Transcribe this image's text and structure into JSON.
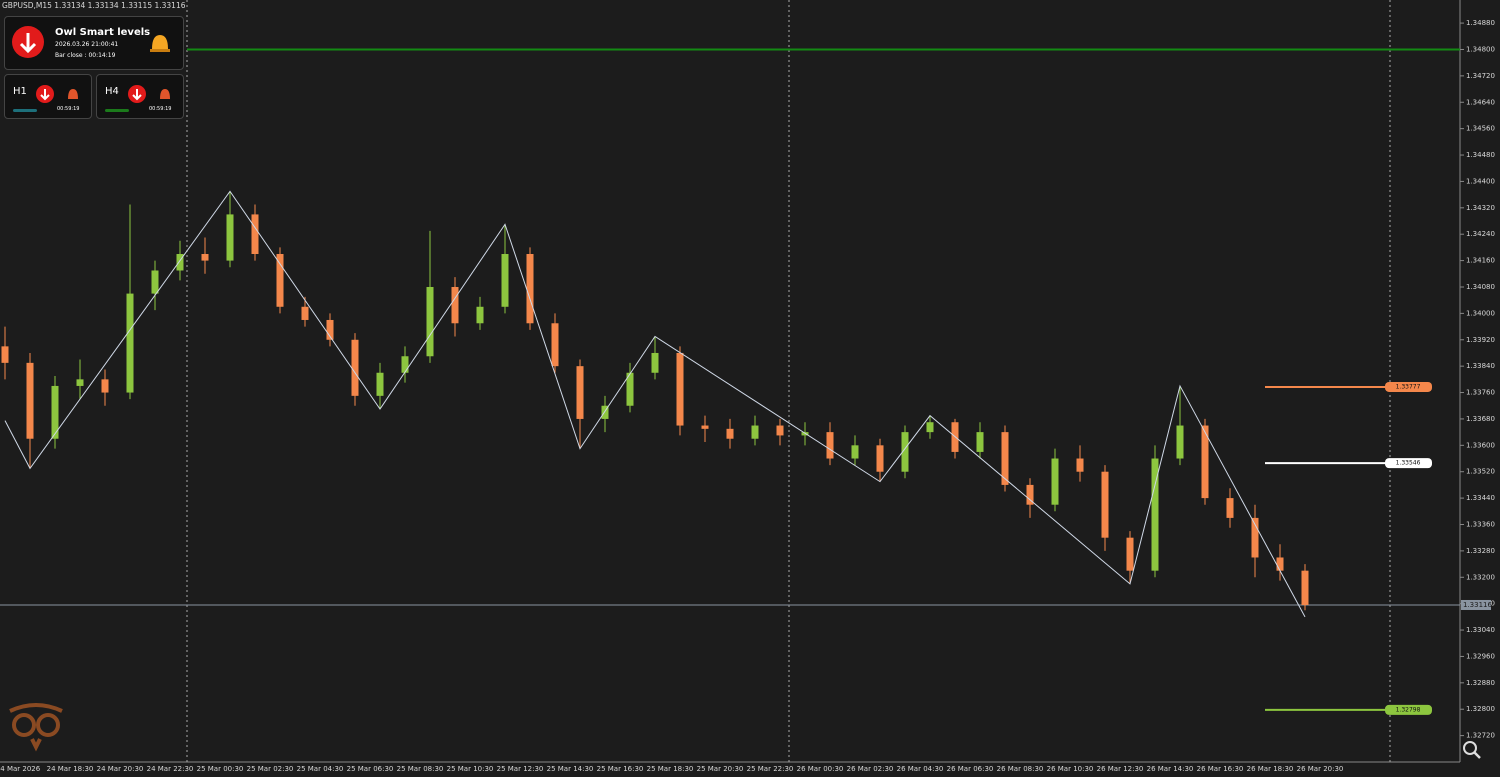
{
  "header": {
    "symbol_info": "GBPUSD,M15  1.33134 1.33134 1.33115 1.33116"
  },
  "panel": {
    "title": "Owl Smart levels",
    "time": "2026.03.26 21:00:41",
    "bar_close": "Bar close : 00:14:19",
    "timeframes": [
      {
        "label": "H1",
        "timer": "00:59:19"
      },
      {
        "label": "H4",
        "timer": "00:59:19"
      }
    ]
  },
  "chart_data": {
    "type": "candlestick",
    "open": [
      1.339,
      1.3385,
      1.3362,
      1.3378,
      1.338,
      1.3376,
      1.3406,
      1.3413,
      1.3418,
      1.3416,
      1.343,
      1.3418,
      1.3402,
      1.3398,
      1.3392,
      1.3375,
      1.3382,
      1.3387,
      1.3408,
      1.3397,
      1.3402,
      1.3418,
      1.3397,
      1.3384,
      1.3368,
      1.3372,
      1.3382,
      1.3388,
      1.3366,
      1.3365,
      1.3362,
      1.3366,
      1.3363,
      1.3364,
      1.3356,
      1.336,
      1.3352,
      1.3364,
      1.3367,
      1.3358,
      1.3364,
      1.3348,
      1.3342,
      1.3356,
      1.3352,
      1.3332,
      1.3322,
      1.3356,
      1.3366,
      1.3344,
      1.3338,
      1.3326,
      1.3322
    ],
    "high": [
      1.3396,
      1.3388,
      1.3381,
      1.3386,
      1.3383,
      1.3433,
      1.3416,
      1.3422,
      1.3423,
      1.3437,
      1.3433,
      1.342,
      1.3405,
      1.34,
      1.3394,
      1.3385,
      1.339,
      1.3425,
      1.3411,
      1.3405,
      1.3427,
      1.342,
      1.34,
      1.3386,
      1.3375,
      1.3385,
      1.3393,
      1.339,
      1.3369,
      1.3368,
      1.3369,
      1.3368,
      1.3367,
      1.3367,
      1.3363,
      1.3362,
      1.3366,
      1.3369,
      1.3368,
      1.3367,
      1.3366,
      1.335,
      1.3359,
      1.336,
      1.3354,
      1.3334,
      1.336,
      1.3378,
      1.3368,
      1.3347,
      1.3342,
      1.333,
      1.3324
    ],
    "low": [
      1.338,
      1.3353,
      1.3359,
      1.3374,
      1.3372,
      1.3374,
      1.3401,
      1.341,
      1.3412,
      1.3414,
      1.3416,
      1.34,
      1.3396,
      1.339,
      1.3372,
      1.3371,
      1.3379,
      1.3385,
      1.3393,
      1.3395,
      1.34,
      1.3395,
      1.3382,
      1.3359,
      1.3364,
      1.337,
      1.338,
      1.3363,
      1.3361,
      1.3359,
      1.336,
      1.336,
      1.336,
      1.3354,
      1.3354,
      1.3349,
      1.335,
      1.3362,
      1.3356,
      1.3356,
      1.3346,
      1.3338,
      1.334,
      1.3349,
      1.3328,
      1.3318,
      1.332,
      1.3354,
      1.3342,
      1.3335,
      1.332,
      1.3319,
      1.331
    ],
    "close": [
      1.3385,
      1.3362,
      1.3378,
      1.338,
      1.3376,
      1.3406,
      1.3413,
      1.3418,
      1.3416,
      1.343,
      1.3418,
      1.3402,
      1.3398,
      1.3392,
      1.3375,
      1.3382,
      1.3387,
      1.3408,
      1.3397,
      1.3402,
      1.3418,
      1.3397,
      1.3384,
      1.3368,
      1.3372,
      1.3382,
      1.3388,
      1.3366,
      1.3365,
      1.3362,
      1.3366,
      1.3363,
      1.3364,
      1.3356,
      1.336,
      1.3352,
      1.3364,
      1.3367,
      1.3358,
      1.3364,
      1.3348,
      1.3342,
      1.3356,
      1.3352,
      1.3332,
      1.3322,
      1.3356,
      1.3366,
      1.3344,
      1.3338,
      1.3326,
      1.3322,
      1.33116
    ],
    "colors": {
      "up": "#8dc63f",
      "down": "#f4874b"
    },
    "ylim": [
      1.3264,
      1.3495
    ],
    "yticks": [
      {
        "value": 1.3488,
        "label": "1.34880"
      },
      {
        "value": 1.348,
        "label": "1.34800"
      },
      {
        "value": 1.3472,
        "label": "1.34720"
      },
      {
        "value": 1.3464,
        "label": "1.34640"
      },
      {
        "value": 1.3456,
        "label": "1.34560"
      },
      {
        "value": 1.3448,
        "label": "1.34480"
      },
      {
        "value": 1.344,
        "label": "1.34400"
      },
      {
        "value": 1.3432,
        "label": "1.34320"
      },
      {
        "value": 1.3424,
        "label": "1.34240"
      },
      {
        "value": 1.3416,
        "label": "1.34160"
      },
      {
        "value": 1.3408,
        "label": "1.34080"
      },
      {
        "value": 1.34,
        "label": "1.34000"
      },
      {
        "value": 1.3392,
        "label": "1.33920"
      },
      {
        "value": 1.3384,
        "label": "1.33840"
      },
      {
        "value": 1.3376,
        "label": "1.33760"
      },
      {
        "value": 1.3368,
        "label": "1.33680"
      },
      {
        "value": 1.336,
        "label": "1.33600"
      },
      {
        "value": 1.3352,
        "label": "1.33520"
      },
      {
        "value": 1.3344,
        "label": "1.33440"
      },
      {
        "value": 1.3336,
        "label": "1.33360"
      },
      {
        "value": 1.3328,
        "label": "1.33280"
      },
      {
        "value": 1.332,
        "label": "1.33200"
      },
      {
        "value": 1.3312,
        "label": "1.33120"
      },
      {
        "value": 1.3304,
        "label": "1.33040"
      },
      {
        "value": 1.3296,
        "label": "1.32960"
      },
      {
        "value": 1.3288,
        "label": "1.32880"
      },
      {
        "value": 1.328,
        "label": "1.32800"
      },
      {
        "value": 1.3272,
        "label": "1.32720"
      }
    ],
    "x_labels": [
      "24 Mar 2026",
      "24 Mar 18:30",
      "24 Mar 20:30",
      "24 Mar 22:30",
      "25 Mar 00:30",
      "25 Mar 02:30",
      "25 Mar 04:30",
      "25 Mar 06:30",
      "25 Mar 08:30",
      "25 Mar 10:30",
      "25 Mar 12:30",
      "25 Mar 14:30",
      "25 Mar 16:30",
      "25 Mar 18:30",
      "25 Mar 20:30",
      "25 Mar 22:30",
      "26 Mar 00:30",
      "26 Mar 02:30",
      "26 Mar 04:30",
      "26 Mar 06:30",
      "26 Mar 08:30",
      "26 Mar 10:30",
      "26 Mar 12:30",
      "26 Mar 14:30",
      "26 Mar 16:30",
      "26 Mar 18:30",
      "26 Mar 20:30"
    ],
    "resistance_line": {
      "value": 1.348,
      "color": "#138a13"
    },
    "levels": [
      {
        "value": 1.33777,
        "color": "#f4874b"
      },
      {
        "value": 1.33546,
        "color": "#ffffff"
      },
      {
        "value": 1.32798,
        "color": "#8dc63f"
      }
    ],
    "current_price": 1.33116,
    "zigzag": {
      "index": [
        0,
        1,
        9,
        15,
        20,
        23,
        26,
        35,
        37,
        45,
        47,
        52
      ],
      "values": [
        1.33675,
        1.3353,
        1.3437,
        1.3371,
        1.3427,
        1.3359,
        1.3393,
        1.3349,
        1.3369,
        1.3318,
        1.3378,
        1.3308
      ]
    }
  }
}
